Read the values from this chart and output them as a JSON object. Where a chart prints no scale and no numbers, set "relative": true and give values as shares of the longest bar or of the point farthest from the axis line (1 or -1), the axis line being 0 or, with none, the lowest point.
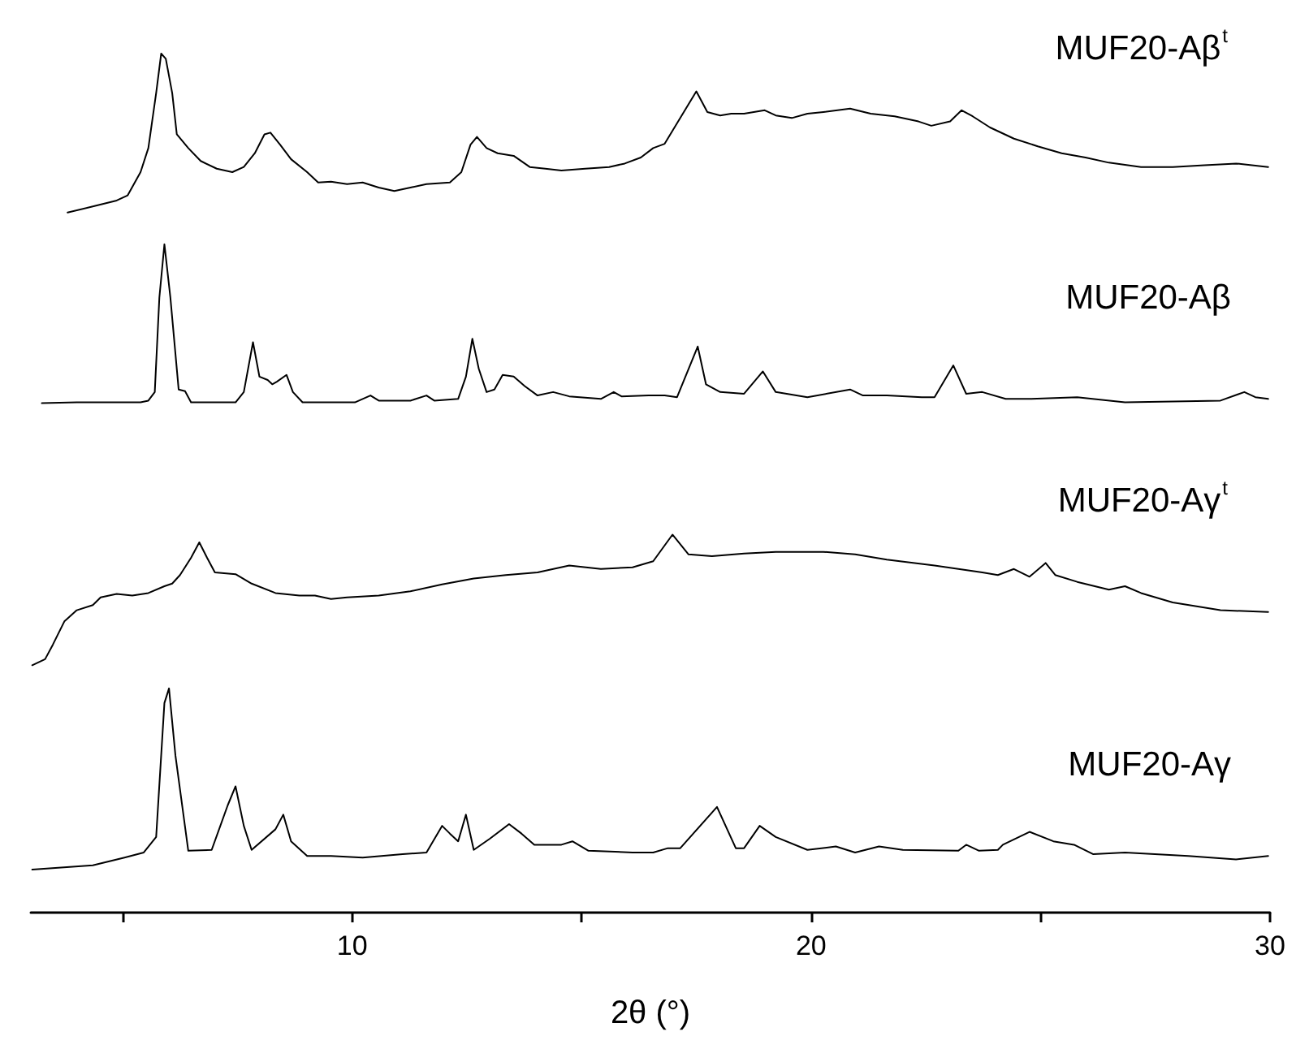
{
  "chart_data": {
    "type": "line",
    "relative": true,
    "xlabel": "2θ (°)",
    "xlim": [
      3,
      30
    ],
    "xticks": [
      {
        "value": 5,
        "label": null
      },
      10,
      {
        "value": 15,
        "label": null
      },
      20,
      {
        "value": 25,
        "label": null
      },
      30
    ],
    "legend": false,
    "marker": "none",
    "grid": false,
    "series": [
      {
        "name": "MUF20-Aβ$^{t}$",
        "color": "#000000",
        "x": [
          3.8,
          4.35,
          4.87,
          5.11,
          5.39,
          5.56,
          5.73,
          5.84,
          5.94,
          6.08,
          6.18,
          6.43,
          6.7,
          7.05,
          7.39,
          7.64,
          7.88,
          8.09,
          8.22,
          8.43,
          8.67,
          9.02,
          9.26,
          9.54,
          9.89,
          10.23,
          10.58,
          10.92,
          11.27,
          11.62,
          12.13,
          12.38,
          12.58,
          12.72,
          12.93,
          13.17,
          13.52,
          13.87,
          14.21,
          14.56,
          15.08,
          15.6,
          15.94,
          16.29,
          16.56,
          16.81,
          17.5,
          17.74,
          18.02,
          18.26,
          18.54,
          18.99,
          19.23,
          19.58,
          19.92,
          20.27,
          20.85,
          21.3,
          21.82,
          22.34,
          22.62,
          23.03,
          23.28,
          23.52,
          23.9,
          24.42,
          24.94,
          25.46,
          25.98,
          26.49,
          27.19,
          27.88,
          28.57,
          29.26,
          29.96
        ],
        "values": [
          0.815,
          0.822,
          0.829,
          0.835,
          0.862,
          0.89,
          0.954,
          1.0,
          0.994,
          0.954,
          0.906,
          0.89,
          0.875,
          0.866,
          0.862,
          0.868,
          0.884,
          0.906,
          0.908,
          0.894,
          0.877,
          0.862,
          0.85,
          0.851,
          0.848,
          0.85,
          0.844,
          0.84,
          0.844,
          0.848,
          0.85,
          0.862,
          0.894,
          0.903,
          0.89,
          0.884,
          0.881,
          0.868,
          0.866,
          0.864,
          0.866,
          0.868,
          0.872,
          0.879,
          0.89,
          0.895,
          0.956,
          0.932,
          0.928,
          0.93,
          0.93,
          0.934,
          0.928,
          0.925,
          0.93,
          0.932,
          0.936,
          0.93,
          0.927,
          0.921,
          0.916,
          0.921,
          0.934,
          0.927,
          0.914,
          0.901,
          0.892,
          0.884,
          0.879,
          0.873,
          0.868,
          0.868,
          0.87,
          0.872,
          0.868
        ]
      },
      {
        "name": "MUF20-Aβ",
        "color": "#000000",
        "x": [
          3.24,
          4.0,
          5.39,
          5.56,
          5.7,
          5.8,
          5.91,
          6.04,
          6.22,
          6.36,
          6.49,
          7.46,
          7.64,
          7.84,
          7.98,
          8.16,
          8.26,
          8.36,
          8.57,
          8.71,
          8.92,
          9.54,
          10.06,
          10.4,
          10.58,
          11.27,
          11.62,
          11.79,
          12.31,
          12.48,
          12.62,
          12.76,
          12.93,
          13.1,
          13.28,
          13.52,
          13.76,
          14.04,
          14.38,
          14.73,
          15.42,
          15.7,
          15.87,
          16.46,
          16.81,
          17.08,
          17.53,
          17.71,
          18.02,
          18.54,
          18.95,
          19.23,
          19.92,
          20.85,
          21.13,
          21.65,
          22.41,
          22.69,
          23.1,
          23.38,
          23.73,
          24.24,
          24.76,
          25.8,
          26.84,
          28.92,
          29.44,
          29.68,
          29.96
        ],
        "values": [
          0.593,
          0.594,
          0.594,
          0.596,
          0.606,
          0.716,
          0.778,
          0.716,
          0.609,
          0.607,
          0.594,
          0.594,
          0.606,
          0.664,
          0.624,
          0.62,
          0.615,
          0.618,
          0.626,
          0.606,
          0.594,
          0.594,
          0.594,
          0.602,
          0.596,
          0.596,
          0.602,
          0.596,
          0.598,
          0.624,
          0.668,
          0.633,
          0.606,
          0.609,
          0.626,
          0.624,
          0.613,
          0.602,
          0.606,
          0.601,
          0.598,
          0.606,
          0.601,
          0.602,
          0.602,
          0.6,
          0.659,
          0.615,
          0.606,
          0.604,
          0.63,
          0.606,
          0.6,
          0.609,
          0.602,
          0.602,
          0.6,
          0.6,
          0.637,
          0.604,
          0.606,
          0.598,
          0.598,
          0.6,
          0.594,
          0.596,
          0.606,
          0.6,
          0.598
        ]
      },
      {
        "name": "MUF20-Aγ$^{t}$",
        "color": "#000000",
        "x": [
          3.03,
          3.31,
          3.48,
          3.73,
          4.0,
          4.35,
          4.52,
          4.87,
          5.21,
          5.56,
          5.91,
          6.08,
          6.25,
          6.49,
          6.67,
          6.84,
          7.01,
          7.46,
          7.81,
          8.33,
          8.85,
          9.19,
          9.54,
          9.89,
          10.58,
          11.27,
          11.96,
          12.65,
          13.35,
          14.04,
          14.73,
          15.42,
          16.11,
          16.56,
          16.98,
          17.33,
          17.84,
          18.54,
          19.23,
          20.27,
          20.96,
          21.65,
          22.69,
          23.73,
          24.07,
          24.42,
          24.76,
          25.11,
          25.32,
          25.8,
          26.49,
          26.84,
          27.19,
          27.88,
          28.92,
          29.96
        ],
        "values": [
          0.288,
          0.295,
          0.312,
          0.339,
          0.352,
          0.358,
          0.367,
          0.371,
          0.369,
          0.372,
          0.38,
          0.383,
          0.393,
          0.413,
          0.431,
          0.413,
          0.396,
          0.394,
          0.383,
          0.372,
          0.369,
          0.369,
          0.365,
          0.367,
          0.369,
          0.374,
          0.382,
          0.389,
          0.393,
          0.396,
          0.404,
          0.4,
          0.402,
          0.409,
          0.44,
          0.417,
          0.415,
          0.418,
          0.42,
          0.42,
          0.417,
          0.411,
          0.404,
          0.396,
          0.393,
          0.4,
          0.391,
          0.407,
          0.393,
          0.385,
          0.376,
          0.38,
          0.372,
          0.361,
          0.352,
          0.35
        ]
      },
      {
        "name": "MUF20-Aγ",
        "color": "#000000",
        "x": [
          3.03,
          4.35,
          5.04,
          5.46,
          5.73,
          5.91,
          6.01,
          6.15,
          6.43,
          6.94,
          7.29,
          7.46,
          7.64,
          7.81,
          8.33,
          8.5,
          8.67,
          9.02,
          9.54,
          10.23,
          11.1,
          11.62,
          11.96,
          12.13,
          12.31,
          12.48,
          12.65,
          13.0,
          13.42,
          13.69,
          13.97,
          14.56,
          14.8,
          15.15,
          16.11,
          16.56,
          16.88,
          17.15,
          17.95,
          18.36,
          18.54,
          18.88,
          19.23,
          19.92,
          20.54,
          20.96,
          21.48,
          22.0,
          23.21,
          23.38,
          23.66,
          24.07,
          24.18,
          24.76,
          25.28,
          25.73,
          26.15,
          26.84,
          28.22,
          29.26,
          29.96
        ],
        "values": [
          0.05,
          0.055,
          0.064,
          0.07,
          0.088,
          0.244,
          0.261,
          0.183,
          0.072,
          0.073,
          0.125,
          0.147,
          0.101,
          0.073,
          0.097,
          0.114,
          0.083,
          0.066,
          0.066,
          0.064,
          0.068,
          0.07,
          0.101,
          0.092,
          0.083,
          0.114,
          0.073,
          0.086,
          0.103,
          0.092,
          0.079,
          0.079,
          0.083,
          0.072,
          0.07,
          0.07,
          0.075,
          0.075,
          0.123,
          0.075,
          0.075,
          0.101,
          0.088,
          0.073,
          0.077,
          0.07,
          0.077,
          0.073,
          0.072,
          0.079,
          0.072,
          0.073,
          0.079,
          0.094,
          0.083,
          0.079,
          0.068,
          0.07,
          0.066,
          0.062,
          0.066
        ]
      }
    ]
  }
}
